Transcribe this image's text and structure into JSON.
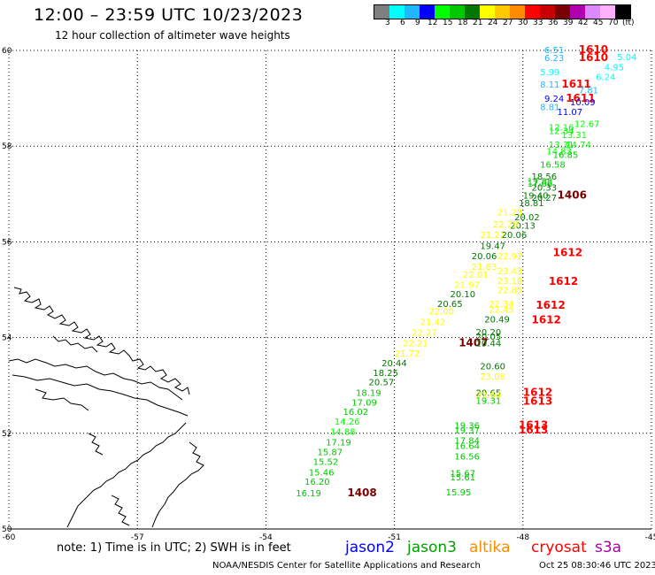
{
  "title": "12:00 – 23:59 UTC 10/23/2023",
  "subtitle": "12 hour collection of altimeter wave heights",
  "colorbar": {
    "colors": [
      "#7f7f7f",
      "#00ffff",
      "#1fb8ff",
      "#0000ff",
      "#00ff00",
      "#00c800",
      "#007800",
      "#ffff00",
      "#ffc800",
      "#ff8c00",
      "#ff0000",
      "#c80000",
      "#780000",
      "#b000b0",
      "#dd88ff",
      "#ffb0ff",
      "#000000"
    ],
    "labels": [
      "3",
      "6",
      "9",
      "12",
      "15",
      "18",
      "21",
      "24",
      "27",
      "30",
      "33",
      "36",
      "39",
      "42",
      "45",
      "70",
      "(ft)"
    ]
  },
  "map": {
    "lat_range": [
      50,
      60
    ],
    "lon_range": [
      -60,
      -45
    ],
    "lat_ticks": [
      "60",
      "58",
      "56",
      "54",
      "52",
      "50"
    ],
    "lon_ticks": [
      "-60",
      "-57",
      "-54",
      "-51",
      "-48",
      "-45"
    ],
    "obs": [
      {
        "t": "6.51",
        "lon": -47.5,
        "lat": 59.94,
        "c": "#1fb8ff"
      },
      {
        "t": "1610",
        "lon": -46.7,
        "lat": 59.94,
        "c": "#ff0000",
        "tag": 1
      },
      {
        "t": "6.23",
        "lon": -47.5,
        "lat": 59.78,
        "c": "#1fb8ff"
      },
      {
        "t": "1610",
        "lon": -46.7,
        "lat": 59.78,
        "c": "#ff0000",
        "tag": 1
      },
      {
        "t": "5.04",
        "lon": -45.8,
        "lat": 59.8,
        "c": "#00ffff"
      },
      {
        "t": "4.95",
        "lon": -46.1,
        "lat": 59.58,
        "c": "#00ffff"
      },
      {
        "t": "5.99",
        "lon": -47.6,
        "lat": 59.48,
        "c": "#00ffff"
      },
      {
        "t": "6.24",
        "lon": -46.3,
        "lat": 59.38,
        "c": "#00ffff"
      },
      {
        "t": "8.11",
        "lon": -47.6,
        "lat": 59.22,
        "c": "#1fb8ff"
      },
      {
        "t": "1611",
        "lon": -47.1,
        "lat": 59.22,
        "c": "#ff0000",
        "tag": 1
      },
      {
        "t": "7.81",
        "lon": -46.7,
        "lat": 59.1,
        "c": "#1fb8ff"
      },
      {
        "t": "9.24",
        "lon": -47.5,
        "lat": 58.93,
        "c": "#0000ff"
      },
      {
        "t": "1611",
        "lon": -47.0,
        "lat": 58.93,
        "c": "#ff0000",
        "tag": 1
      },
      {
        "t": "10.09",
        "lon": -46.9,
        "lat": 58.85,
        "c": "#0000ff"
      },
      {
        "t": "8.81",
        "lon": -47.6,
        "lat": 58.75,
        "c": "#1fb8ff"
      },
      {
        "t": "11.07",
        "lon": -47.2,
        "lat": 58.65,
        "c": "#0000ff"
      },
      {
        "t": "12.67",
        "lon": -46.8,
        "lat": 58.4,
        "c": "#00ff00"
      },
      {
        "t": "12.16",
        "lon": -47.4,
        "lat": 58.33,
        "c": "#00ff00"
      },
      {
        "t": "12.34",
        "lon": -47.4,
        "lat": 58.25,
        "c": "#00ff00"
      },
      {
        "t": "13.31",
        "lon": -47.1,
        "lat": 58.17,
        "c": "#00ff00"
      },
      {
        "t": "13.31",
        "lon": -47.4,
        "lat": 57.97,
        "c": "#00ff00"
      },
      {
        "t": "14.74",
        "lon": -47.0,
        "lat": 57.97,
        "c": "#00ff00"
      },
      {
        "t": "14.83",
        "lon": -47.45,
        "lat": 57.83,
        "c": "#00ff00"
      },
      {
        "t": "16.85",
        "lon": -47.3,
        "lat": 57.75,
        "c": "#00c800"
      },
      {
        "t": "16.58",
        "lon": -47.6,
        "lat": 57.55,
        "c": "#00c800"
      },
      {
        "t": "18.56",
        "lon": -47.8,
        "lat": 57.3,
        "c": "#007800"
      },
      {
        "t": "17.88",
        "lon": -47.9,
        "lat": 57.2,
        "c": "#00c800"
      },
      {
        "t": "17.66",
        "lon": -47.9,
        "lat": 57.15,
        "c": "#00c800"
      },
      {
        "t": "20.33",
        "lon": -47.8,
        "lat": 57.07,
        "c": "#007800"
      },
      {
        "t": "19.40",
        "lon": -48.0,
        "lat": 56.9,
        "c": "#007800"
      },
      {
        "t": "1406",
        "lon": -47.2,
        "lat": 56.9,
        "c": "#780000",
        "tag": 1
      },
      {
        "t": "20.27",
        "lon": -47.8,
        "lat": 56.86,
        "c": "#007800"
      },
      {
        "t": "18.81",
        "lon": -48.1,
        "lat": 56.75,
        "c": "#007800"
      },
      {
        "t": "21.23",
        "lon": -48.6,
        "lat": 56.55,
        "c": "#ffff00"
      },
      {
        "t": "20.02",
        "lon": -48.2,
        "lat": 56.45,
        "c": "#007800"
      },
      {
        "t": "20.13",
        "lon": -48.3,
        "lat": 56.28,
        "c": "#007800"
      },
      {
        "t": "22.29",
        "lon": -48.7,
        "lat": 56.3,
        "c": "#ffff00"
      },
      {
        "t": "21.22",
        "lon": -49.0,
        "lat": 56.08,
        "c": "#ffff00"
      },
      {
        "t": "20.06",
        "lon": -48.5,
        "lat": 56.08,
        "c": "#007800"
      },
      {
        "t": "19.47",
        "lon": -49.0,
        "lat": 55.85,
        "c": "#007800"
      },
      {
        "t": "20.06",
        "lon": -49.2,
        "lat": 55.64,
        "c": "#007800"
      },
      {
        "t": "22.97",
        "lon": -48.6,
        "lat": 55.64,
        "c": "#ffff00"
      },
      {
        "t": "1612",
        "lon": -47.3,
        "lat": 55.7,
        "c": "#ff0000",
        "tag": 1
      },
      {
        "t": "21.83",
        "lon": -49.2,
        "lat": 55.42,
        "c": "#ffff00"
      },
      {
        "t": "23.43",
        "lon": -48.6,
        "lat": 55.32,
        "c": "#ffff00"
      },
      {
        "t": "22.01",
        "lon": -49.4,
        "lat": 55.25,
        "c": "#ffff00"
      },
      {
        "t": "23.18",
        "lon": -48.6,
        "lat": 55.12,
        "c": "#ffff00"
      },
      {
        "t": "1612",
        "lon": -47.4,
        "lat": 55.1,
        "c": "#ff0000",
        "tag": 1
      },
      {
        "t": "21.97",
        "lon": -49.6,
        "lat": 55.04,
        "c": "#ffff00"
      },
      {
        "t": "22.85",
        "lon": -48.6,
        "lat": 54.93,
        "c": "#ffff00"
      },
      {
        "t": "20.10",
        "lon": -49.7,
        "lat": 54.84,
        "c": "#007800"
      },
      {
        "t": "20.65",
        "lon": -50.0,
        "lat": 54.64,
        "c": "#007800"
      },
      {
        "t": "22.34",
        "lon": -48.8,
        "lat": 54.64,
        "c": "#ffff00"
      },
      {
        "t": "1612",
        "lon": -47.7,
        "lat": 54.6,
        "c": "#ff0000",
        "tag": 1
      },
      {
        "t": "22.45",
        "lon": -48.8,
        "lat": 54.52,
        "c": "#ffff00"
      },
      {
        "t": "22.00",
        "lon": -50.2,
        "lat": 54.48,
        "c": "#ffff00"
      },
      {
        "t": "20.49",
        "lon": -48.9,
        "lat": 54.32,
        "c": "#007800"
      },
      {
        "t": "1612",
        "lon": -47.8,
        "lat": 54.3,
        "c": "#ff0000",
        "tag": 1
      },
      {
        "t": "21.42",
        "lon": -50.4,
        "lat": 54.26,
        "c": "#ffff00"
      },
      {
        "t": "22.27",
        "lon": -50.6,
        "lat": 54.04,
        "c": "#ffff00"
      },
      {
        "t": "20.20",
        "lon": -49.1,
        "lat": 54.05,
        "c": "#007800"
      },
      {
        "t": "20.05",
        "lon": -49.1,
        "lat": 53.96,
        "c": "#007800"
      },
      {
        "t": "22.21",
        "lon": -50.8,
        "lat": 53.82,
        "c": "#ffff00"
      },
      {
        "t": "1407",
        "lon": -49.5,
        "lat": 53.82,
        "c": "#780000",
        "tag": 1
      },
      {
        "t": "20.44",
        "lon": -49.1,
        "lat": 53.82,
        "c": "#007800"
      },
      {
        "t": "21.72",
        "lon": -51.0,
        "lat": 53.6,
        "c": "#ffff00"
      },
      {
        "t": "20.44",
        "lon": -51.3,
        "lat": 53.4,
        "c": "#007800"
      },
      {
        "t": "20.60",
        "lon": -49.0,
        "lat": 53.34,
        "c": "#007800"
      },
      {
        "t": "18.25",
        "lon": -51.5,
        "lat": 53.2,
        "c": "#007800"
      },
      {
        "t": "23.08",
        "lon": -49.0,
        "lat": 53.12,
        "c": "#ffff00"
      },
      {
        "t": "20.57",
        "lon": -51.6,
        "lat": 53.0,
        "c": "#007800"
      },
      {
        "t": "18.19",
        "lon": -51.9,
        "lat": 52.78,
        "c": "#00c800"
      },
      {
        "t": "20.65",
        "lon": -49.1,
        "lat": 52.78,
        "c": "#007800"
      },
      {
        "t": "22.64",
        "lon": -49.1,
        "lat": 52.74,
        "c": "#ffff00"
      },
      {
        "t": "1612",
        "lon": -48.0,
        "lat": 52.78,
        "c": "#ff0000",
        "tag": 1
      },
      {
        "t": "19.31",
        "lon": -49.1,
        "lat": 52.62,
        "c": "#00c800"
      },
      {
        "t": "1613",
        "lon": -48.0,
        "lat": 52.6,
        "c": "#ff0000",
        "tag": 1
      },
      {
        "t": "17.09",
        "lon": -52.0,
        "lat": 52.58,
        "c": "#00c800"
      },
      {
        "t": "16.02",
        "lon": -52.2,
        "lat": 52.38,
        "c": "#00c800"
      },
      {
        "t": "19.36",
        "lon": -49.6,
        "lat": 52.1,
        "c": "#00c800"
      },
      {
        "t": "1613",
        "lon": -48.1,
        "lat": 52.1,
        "c": "#ff0000",
        "tag": 1
      },
      {
        "t": "19.37",
        "lon": -49.6,
        "lat": 52.0,
        "c": "#00c800"
      },
      {
        "t": "1613",
        "lon": -48.1,
        "lat": 52.0,
        "c": "#ff0000",
        "tag": 1
      },
      {
        "t": "14.88",
        "lon": -52.5,
        "lat": 51.97,
        "c": "#00ff00"
      },
      {
        "t": "14.26",
        "lon": -52.4,
        "lat": 52.18,
        "c": "#00ff00"
      },
      {
        "t": "17.19",
        "lon": -52.6,
        "lat": 51.75,
        "c": "#00c800"
      },
      {
        "t": "17.84",
        "lon": -49.6,
        "lat": 51.78,
        "c": "#00c800"
      },
      {
        "t": "16.64",
        "lon": -49.6,
        "lat": 51.67,
        "c": "#00c800"
      },
      {
        "t": "15.87",
        "lon": -52.8,
        "lat": 51.54,
        "c": "#00c800"
      },
      {
        "t": "16.56",
        "lon": -49.6,
        "lat": 51.45,
        "c": "#00c800"
      },
      {
        "t": "15.52",
        "lon": -52.9,
        "lat": 51.34,
        "c": "#00c800"
      },
      {
        "t": "15.46",
        "lon": -53.0,
        "lat": 51.12,
        "c": "#00c800"
      },
      {
        "t": "15.67",
        "lon": -49.7,
        "lat": 51.1,
        "c": "#00c800"
      },
      {
        "t": "15.61",
        "lon": -49.7,
        "lat": 51.02,
        "c": "#00c800"
      },
      {
        "t": "16.20",
        "lon": -53.1,
        "lat": 50.92,
        "c": "#00c800"
      },
      {
        "t": "15.95",
        "lon": -49.8,
        "lat": 50.7,
        "c": "#00c800"
      },
      {
        "t": "16.19",
        "lon": -53.3,
        "lat": 50.68,
        "c": "#00c800"
      },
      {
        "t": "1408",
        "lon": -52.1,
        "lat": 50.68,
        "c": "#780000",
        "tag": 1
      }
    ]
  },
  "note": "note:  1) Time is in UTC; 2) SWH is in feet",
  "legend": [
    {
      "name": "jason2",
      "color": "#0000ff"
    },
    {
      "name": "jason3",
      "color": "#00a000"
    },
    {
      "name": "altika",
      "color": "#ff8c00"
    },
    {
      "name": "cryosat",
      "color": "#ff0000"
    },
    {
      "name": "s3a",
      "color": "#aa00aa"
    }
  ],
  "footer": "NOAA/NESDIS Center for Satellite Applications and Research",
  "timestamp": "Oct 25 08:30:46 UTC 2023"
}
